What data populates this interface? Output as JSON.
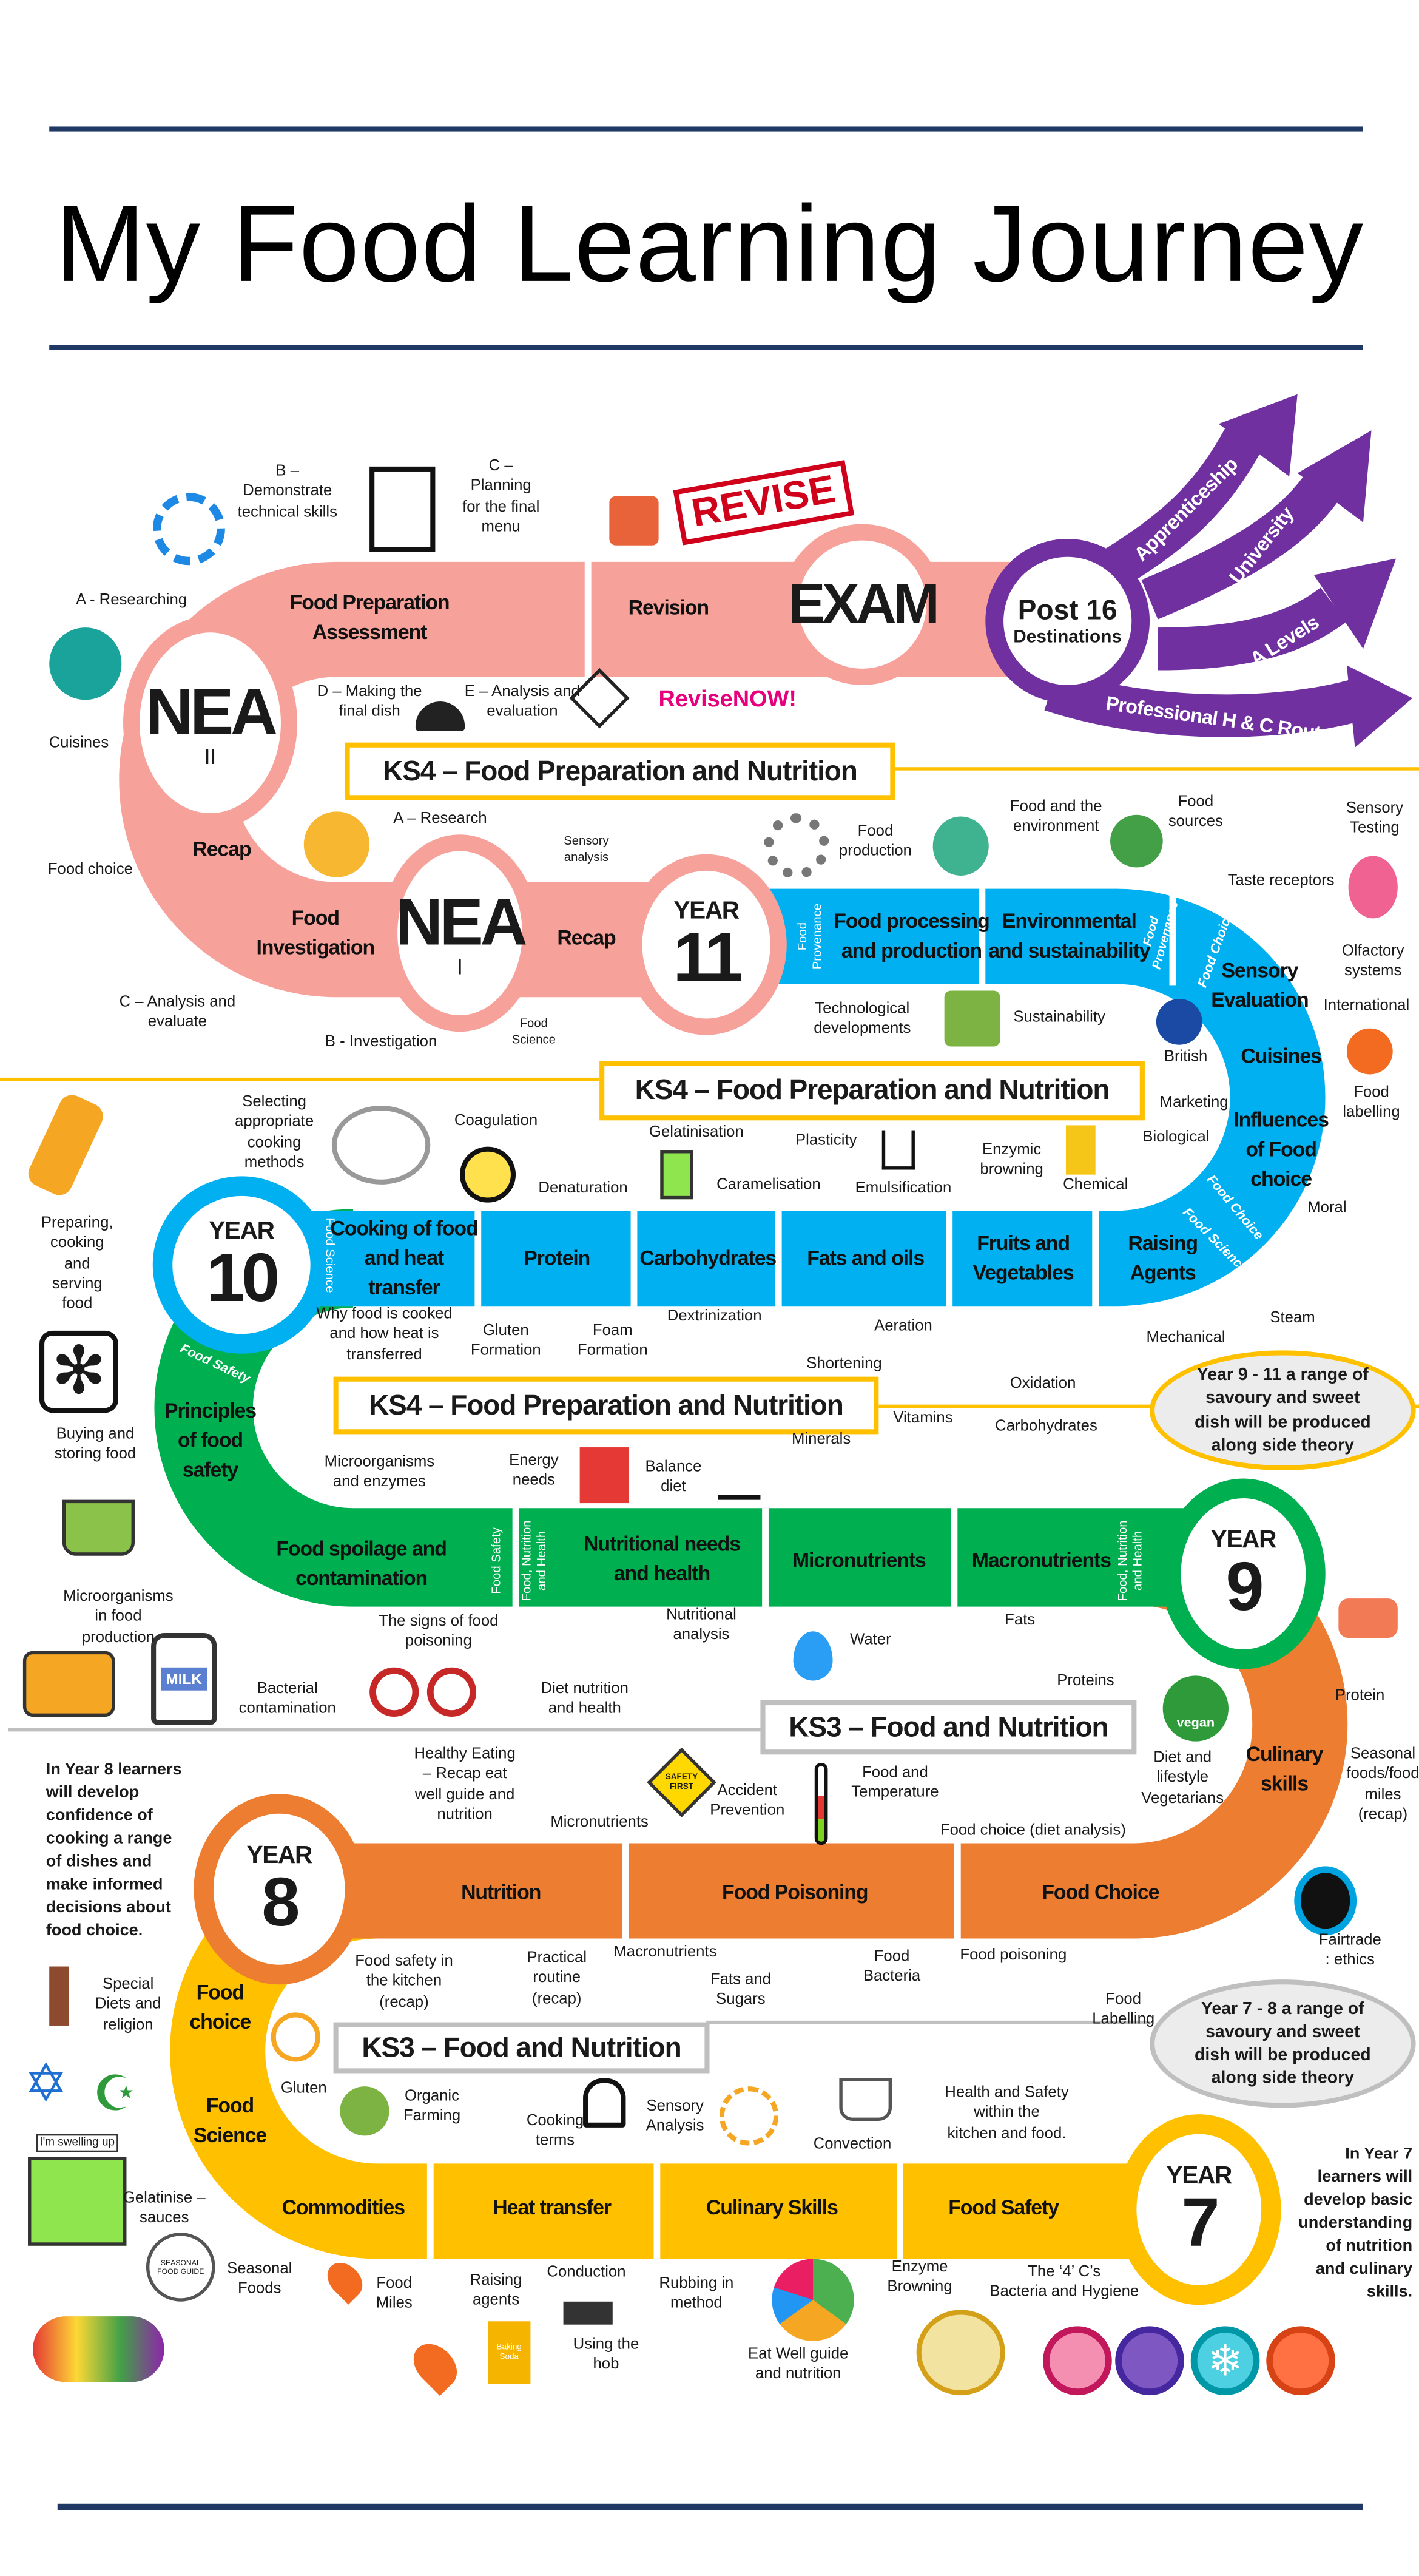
{
  "title": "My Food Learning Journey",
  "colors": {
    "rule": "#1f3864",
    "ks4_path": "#f7a19b",
    "year11": "#f7a19b",
    "year10": "#00b0f0",
    "year9": "#00b050",
    "year8": "#ed7d31",
    "year7": "#ffc000",
    "post16": "#7030a0",
    "ks4_border": "#ffc000",
    "ks3_border": "#bfbfbf"
  },
  "ks_headers": {
    "ks4": "KS4 – Food Preparation and Nutrition",
    "ks3": "KS3 – Food and Nutrition"
  },
  "milestones": {
    "nea2": {
      "label": "NEA",
      "sub": "II"
    },
    "nea1": {
      "label": "NEA",
      "sub": "I"
    },
    "exam": "EXAM",
    "post16": {
      "title": "Post 16",
      "sub": "Destinations"
    },
    "year11": {
      "word": "YEAR",
      "num": "11"
    },
    "year10": {
      "word": "YEAR",
      "num": "10"
    },
    "year9": {
      "word": "YEAR",
      "num": "9"
    },
    "year8": {
      "word": "YEAR",
      "num": "8"
    },
    "year7": {
      "word": "YEAR",
      "num": "7"
    }
  },
  "destinations": [
    "Apprenticeship",
    "University",
    "A Levels",
    "Professional  H & C Routes"
  ],
  "road": {
    "ks4_nea": [
      "Food Preparation\nAssessment",
      "Revision",
      "Recap",
      "Food\nInvestigation",
      "Recap"
    ],
    "year11": [
      "Food\nProvenance",
      "Food processing\nand production",
      "Environmental\nand sustainability",
      "Food\nProvenance",
      "Food Choice",
      "Sensory\nEvaluation",
      "Cuisines",
      "Influences\nof Food\nchoice",
      "Food Choice",
      "Food Science"
    ],
    "year10": [
      "Food Science",
      "Cooking of food\nand heat\ntransfer",
      "Protein",
      "Carbohydrates",
      "Fats and oils",
      "Fruits and\nVegetables",
      "Raising\nAgents"
    ],
    "year9": [
      "Food Safety",
      "Principles\nof food\nsafety",
      "Food spoilage and\ncontamination",
      "Food Safety",
      "Food, Nutrition\nand Health",
      "Nutritional needs\nand health",
      "Micronutrients",
      "Macronutrients",
      "Food, Nutrition\nand Health"
    ],
    "year8": [
      "Culinary\nskills",
      "Nutrition",
      "Food Poisoning",
      "Food Choice"
    ],
    "year7": [
      "Food\nchoice",
      "Food\nScience",
      "Commodities",
      "Heat transfer",
      "Culinary Skills",
      "Food Safety"
    ]
  },
  "annotations": [
    "B –\nDemonstrate\ntechnical skills",
    "C –\nPlanning\nfor the final\nmenu",
    "A - Researching",
    "Cuisines",
    "Food choice",
    "D – Making the\nfinal dish",
    "E – Analysis and\nevaluation",
    "A – Research",
    "Sensory\nanalysis",
    "C – Analysis and\nevaluate",
    "B - Investigation",
    "Food\nScience",
    "Food\nproduction",
    "Food and the\nenvironment",
    "Food\nsources",
    "Sensory\nTesting",
    "Taste receptors",
    "Olfactory\nsystems",
    "International",
    "Technological\ndevelopments",
    "Sustainability",
    "British",
    "Food\nlabelling",
    "Marketing",
    "Biological",
    "Moral",
    "Steam",
    "Chemical",
    "Enzymic\nbrowning",
    "Gelatinisation",
    "Plasticity",
    "Caramelisation",
    "Emulsification",
    "Coagulation",
    "Denaturation",
    "Selecting\nappropriate\ncooking\nmethods",
    "Preparing,\ncooking\nand\nserving\nfood",
    "Why food is cooked\nand how heat is\ntransferred",
    "Gluten\nFormation",
    "Foam\nFormation",
    "Dextrinization",
    "Aeration",
    "Shortening",
    "Oxidation",
    "Mechanical",
    "Buying and\nstoring food",
    "Microorganisms\nand enzymes",
    "Energy\nneeds",
    "Balance\ndiet",
    "Minerals",
    "Vitamins",
    "Carbohydrates",
    "Microorganisms\nin food\nproduction",
    "Bacterial\ncontamination",
    "The signs of food\npoisoning",
    "Diet nutrition\nand health",
    "Nutritional\nanalysis",
    "Water",
    "Fats",
    "Proteins",
    "Protein",
    "Seasonal\nfoods/food\nmiles\n(recap)",
    "Diet and\nlifestyle\nVegetarians",
    "Healthy Eating\n– Recap eat\nwell guide and\nnutrition",
    "Micronutrients",
    "Accident\nPrevention",
    "Food and\nTemperature",
    "Food choice (diet analysis)",
    "Fairtrade : ethics",
    "Food safety in\nthe kitchen\n(recap)",
    "Practical\nroutine\n(recap)",
    "Macronutrients",
    "Fats and\nSugars",
    "Food\nBacteria",
    "Food poisoning",
    "Food\nLabelling",
    "Special\nDiets and\nreligion",
    "Gluten",
    "Organic\nFarming",
    "Cooking\nterms",
    "Sensory\nAnalysis",
    "Convection",
    "Health and Safety\nwithin the\nkitchen and food.",
    "Gelatinise –\nsauces",
    "Seasonal\nFoods",
    "Food\nMiles",
    "Raising\nagents",
    "Conduction",
    "Using the\nhob",
    "Rubbing in\nmethod",
    "Eat Well guide\nand nutrition",
    "Enzyme\nBrowning",
    "The ‘4’ C’s\nBacteria and Hygiene"
  ],
  "notes": {
    "year9_11": "Year 9 - 11 a range of\nsavoury and sweet\ndish will be produced\nalong side theory",
    "year7_8": "Year 7 - 8 a range of\nsavoury and sweet\ndish will be produced\nalong side theory",
    "year8_side": "In Year 8 learners\nwill develop\nconfidence of\ncooking a range\nof dishes and\nmake informed\ndecisions about\nfood choice.",
    "year7_side": "In Year 7\nlearners  will\ndevelop basic\nunderstanding\nof nutrition\nand culinary\nskills."
  },
  "logos": {
    "revise_stamp": "REVISE",
    "revise_now": "ReviseNOW!",
    "vegan_badge": "vegan",
    "milk": "MILK",
    "swelling": "I'm swelling up",
    "seasonal_guide": "SEASONAL FOOD GUIDE",
    "safety_first": "SAFETY FIRST",
    "baking_soda": "Baking Soda"
  }
}
